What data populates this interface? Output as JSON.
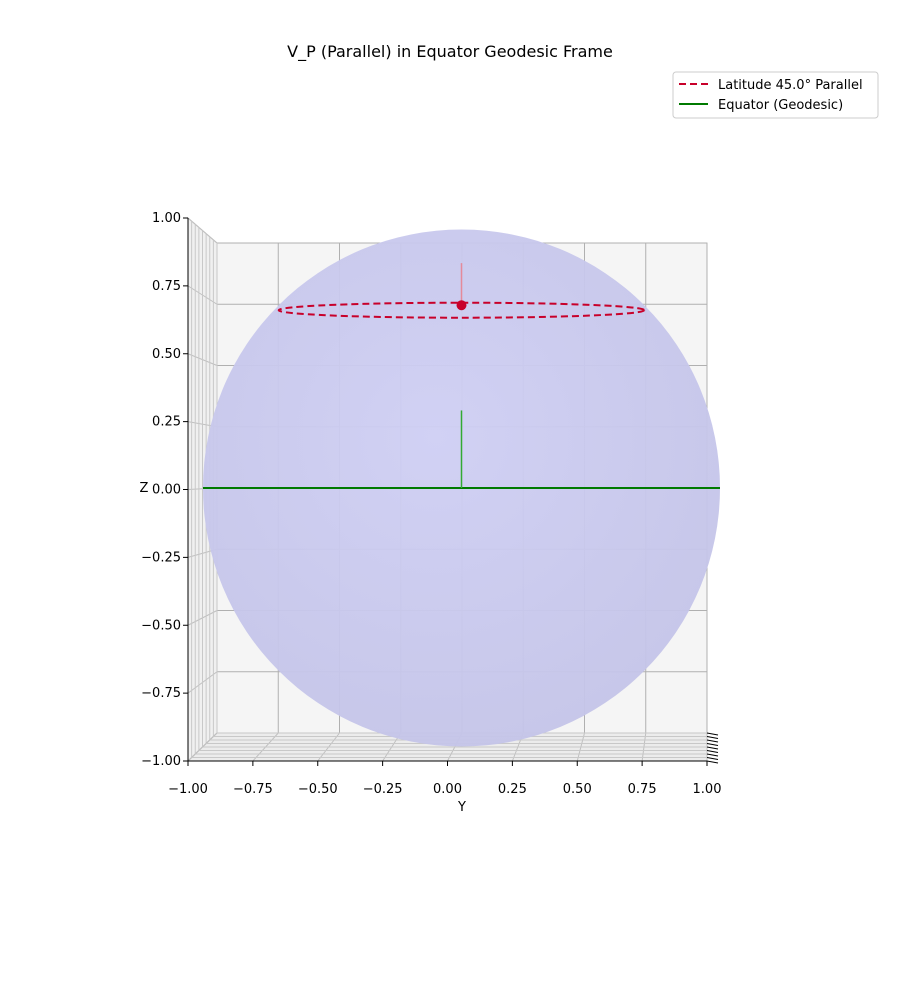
{
  "chart_data": {
    "type": "line",
    "title": "V_P (Parallel) in Equator Geodesic Frame",
    "view": "3d",
    "xlabel": "",
    "ylabel": "Y",
    "zlabel": "Z",
    "ylim": [
      -1.0,
      1.0
    ],
    "zlim": [
      -1.0,
      1.0
    ],
    "xlim": [
      -1.0,
      1.0
    ],
    "y_ticks": [
      "−1.00",
      "−0.75",
      "−0.50",
      "−0.25",
      "0.00",
      "0.25",
      "0.50",
      "0.75",
      "1.00"
    ],
    "z_ticks": [
      "−1.00",
      "−0.75",
      "−0.50",
      "−0.25",
      "0.00",
      "0.25",
      "0.50",
      "0.75",
      "1.00"
    ],
    "y_tick_values": [
      -1.0,
      -0.75,
      -0.5,
      -0.25,
      0.0,
      0.25,
      0.5,
      0.75,
      1.0
    ],
    "z_tick_values": [
      -1.0,
      -0.75,
      -0.5,
      -0.25,
      0.0,
      0.25,
      0.5,
      0.75,
      1.0
    ],
    "grid": true,
    "legend_position": "top-right",
    "sphere": {
      "radius": 1.0,
      "color": "#c4c4ee"
    },
    "series": [
      {
        "name": "Latitude 45.0° Parallel",
        "style": "dashed",
        "color": "#c8002a",
        "latitude_deg": 45.0
      },
      {
        "name": "Equator (Geodesic)",
        "style": "solid",
        "color": "#007a00",
        "latitude_deg": 0.0
      }
    ],
    "point": {
      "y": 0.0,
      "z": 0.7071,
      "color": "#c8002a"
    },
    "vectors": [
      {
        "y0": 0.0,
        "z0": 0.7071,
        "y1": 0.0,
        "z1": 0.87,
        "color": "#e58a9a"
      },
      {
        "y0": 0.0,
        "z0": 0.0,
        "y1": 0.0,
        "z1": 0.3,
        "color": "#33aa33"
      }
    ]
  }
}
